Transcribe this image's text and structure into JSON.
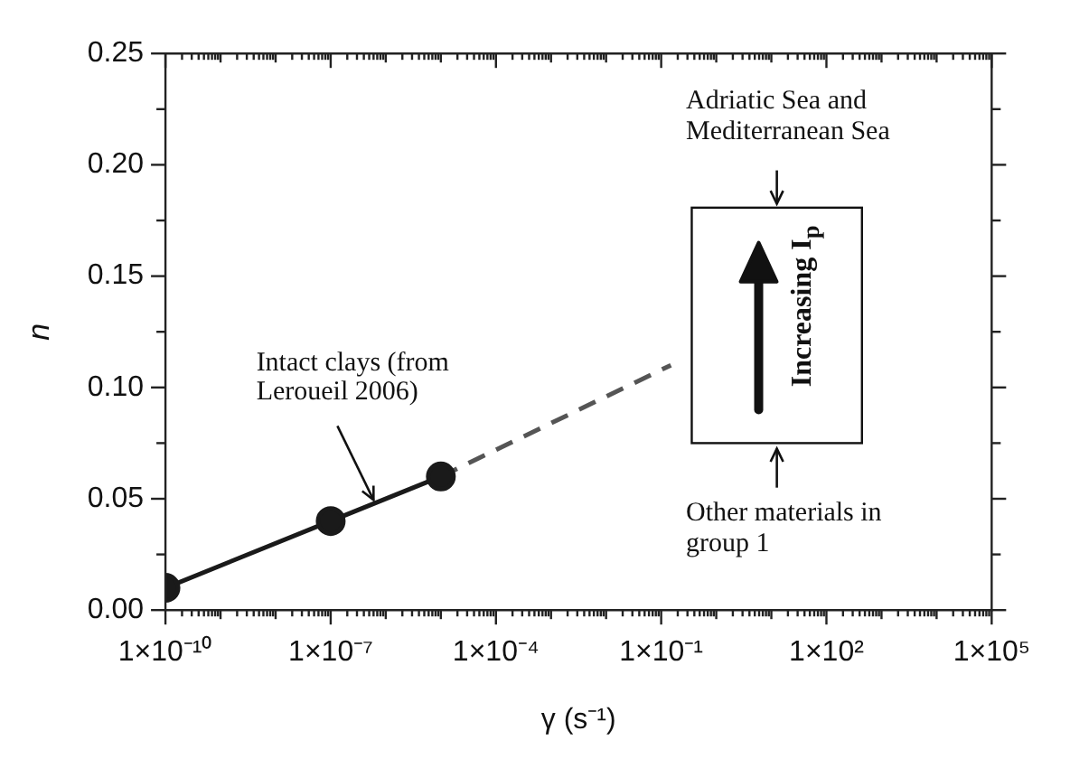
{
  "chart_data": {
    "type": "line",
    "xlabel": "γ (s⁻¹)",
    "ylabel": "n",
    "log": "x",
    "xlim": [
      1e-10,
      100000
    ],
    "xticks": [
      {
        "value": 1e-10,
        "label": "1×10⁻¹⁰"
      },
      {
        "value": 1e-09,
        "label": null
      },
      {
        "value": 1e-08,
        "label": null
      },
      {
        "value": 1e-07,
        "label": "1×10⁻⁷"
      },
      {
        "value": 1e-06,
        "label": null
      },
      {
        "value": 1e-05,
        "label": null
      },
      {
        "value": 0.0001,
        "label": "1×10⁻⁴"
      },
      {
        "value": 0.001,
        "label": null
      },
      {
        "value": 0.01,
        "label": null
      },
      {
        "value": 0.1,
        "label": "1×10⁻¹"
      },
      {
        "value": 1,
        "label": null
      },
      {
        "value": 10,
        "label": null
      },
      {
        "value": 100,
        "label": "1×10²"
      },
      {
        "value": 1000,
        "label": null
      },
      {
        "value": 10000,
        "label": null
      },
      {
        "value": 100000,
        "label": "1×10⁵"
      }
    ],
    "ylim": [
      0,
      0.25
    ],
    "yticks": [
      {
        "value": 0,
        "label": "0.00"
      },
      {
        "value": 0.025,
        "label": null
      },
      {
        "value": 0.05,
        "label": "0.05"
      },
      {
        "value": 0.075,
        "label": null
      },
      {
        "value": 0.1,
        "label": "0.10"
      },
      {
        "value": 0.125,
        "label": null
      },
      {
        "value": 0.15,
        "label": "0.15"
      },
      {
        "value": 0.175,
        "label": null
      },
      {
        "value": 0.2,
        "label": "0.20"
      },
      {
        "value": 0.225,
        "label": null
      },
      {
        "value": 0.25,
        "label": "0.25"
      }
    ],
    "series": [
      {
        "color": "#1a1a1a",
        "marker": "circle",
        "line_style": "solid",
        "x": [
          1e-10,
          1e-07,
          1e-05
        ],
        "values": [
          0.01,
          0.04,
          0.06
        ]
      },
      {
        "color": "#555555",
        "marker": "none",
        "line_style": "dashed",
        "x": [
          1e-05,
          0.15
        ],
        "values": [
          0.06,
          0.11
        ]
      }
    ],
    "annotations": [
      {
        "text": "Intact clays (from Leroueil 2006)",
        "x": 6e-07,
        "y": 0.047
      },
      "Adriatic Sea and Mediterranean Sea",
      "Increasing I$_{p}$",
      "Other materials in group 1"
    ]
  }
}
